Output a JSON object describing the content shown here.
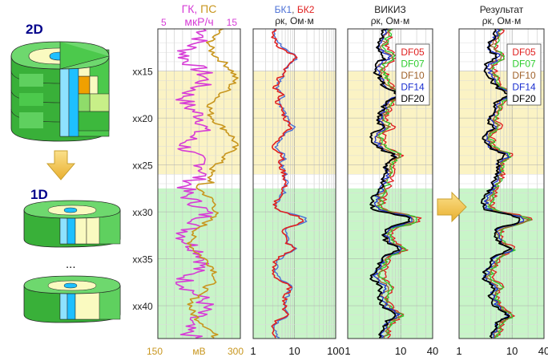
{
  "left_panel": {
    "label_2d": "2D",
    "label_1d": "1D",
    "ellipsis": "...",
    "colors": {
      "dark_green": "#2e9e2e",
      "green": "#4cc94c",
      "light_green": "#8fdc6a",
      "cream": "#fafac0",
      "blue": "#1ec0ff",
      "orange": "#f0a000",
      "navy": "#00008b",
      "arrow": "#f5c542"
    }
  },
  "depth_axis": {
    "ticks": [
      "xx15",
      "xx20",
      "xx25",
      "xx30",
      "xx35",
      "xx40"
    ],
    "tick_depths": [
      15,
      20,
      25,
      30,
      35,
      40
    ],
    "range": [
      10.5,
      43.5
    ]
  },
  "zones": [
    {
      "from": 15,
      "to": 26,
      "color": "#fbf3c4"
    },
    {
      "from": 27.5,
      "to": 43.5,
      "color": "#c8f5c8"
    }
  ],
  "tracks": [
    {
      "id": "gk-ps",
      "header_top": "ГК, ПС",
      "header_top_colors": [
        "#d63cd6",
        "#c8961e"
      ],
      "header_unit": "мкР/ч",
      "header_unit_color": "#d63cd6",
      "top_min": "5",
      "top_max": "15",
      "bottom_min": "150",
      "bottom_unit": "мВ",
      "bottom_max": "300",
      "scale": "linear"
    },
    {
      "id": "bk",
      "header_top_parts": [
        {
          "text": "БК1",
          "color": "#4a6fd6"
        },
        {
          "text": ", ",
          "color": "#555555"
        },
        {
          "text": "БК2",
          "color": "#e02020"
        }
      ],
      "header_unit": "ρк, Ом·м",
      "bottom_ticks": [
        "1",
        "10",
        "100"
      ],
      "scale": "log"
    },
    {
      "id": "vikiz",
      "header_top": "ВИКИЗ",
      "header_unit": "ρк, Ом·м",
      "bottom_ticks": [
        "1",
        "10",
        "40"
      ],
      "scale": "log"
    },
    {
      "id": "result",
      "header_top": "Результат",
      "header_unit": "ρк, Ом·м",
      "bottom_ticks": [
        "1",
        "10",
        "40"
      ],
      "scale": "log"
    }
  ],
  "legend": [
    {
      "label": "DF05",
      "color": "#e02020"
    },
    {
      "label": "DF07",
      "color": "#2ecc2e"
    },
    {
      "label": "DF10",
      "color": "#a0622a"
    },
    {
      "label": "DF14",
      "color": "#1a2fd0"
    },
    {
      "label": "DF20",
      "color": "#000000"
    }
  ],
  "arrow_color": "#f5c542"
}
